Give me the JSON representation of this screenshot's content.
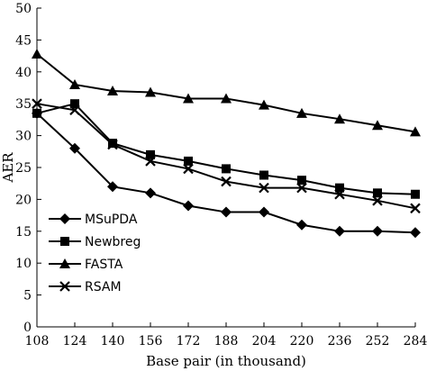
{
  "chart_data": {
    "type": "line",
    "x": [
      108,
      124,
      140,
      156,
      172,
      188,
      204,
      220,
      236,
      252,
      284
    ],
    "series": [
      {
        "name": "MSuPDA",
        "marker": "diamond",
        "values": [
          33.5,
          28,
          22,
          21,
          19,
          18,
          18,
          16,
          15,
          15,
          14.8
        ]
      },
      {
        "name": "Newbreg",
        "marker": "square",
        "values": [
          33.5,
          35,
          28.8,
          27,
          26,
          24.8,
          23.8,
          23,
          21.8,
          21,
          20.8
        ]
      },
      {
        "name": "FASTA",
        "marker": "triangle",
        "values": [
          42.8,
          38,
          37,
          36.8,
          35.8,
          35.8,
          34.8,
          33.5,
          32.6,
          31.6,
          30.6
        ]
      },
      {
        "name": "RSAM",
        "marker": "cross",
        "values": [
          35,
          34,
          28.6,
          26,
          24.8,
          22.8,
          21.8,
          21.8,
          20.8,
          19.8,
          18.6
        ]
      }
    ],
    "xlabel": "Base pair (in thousand)",
    "ylabel": "AER",
    "ylim": [
      0,
      50
    ],
    "yticks": [
      0,
      5,
      10,
      15,
      20,
      25,
      30,
      35,
      40,
      45,
      50
    ],
    "xticks": [
      "108",
      "124",
      "140",
      "156",
      "172",
      "188",
      "204",
      "220",
      "236",
      "252",
      "284"
    ],
    "legend": "left-middle",
    "grid": false
  }
}
